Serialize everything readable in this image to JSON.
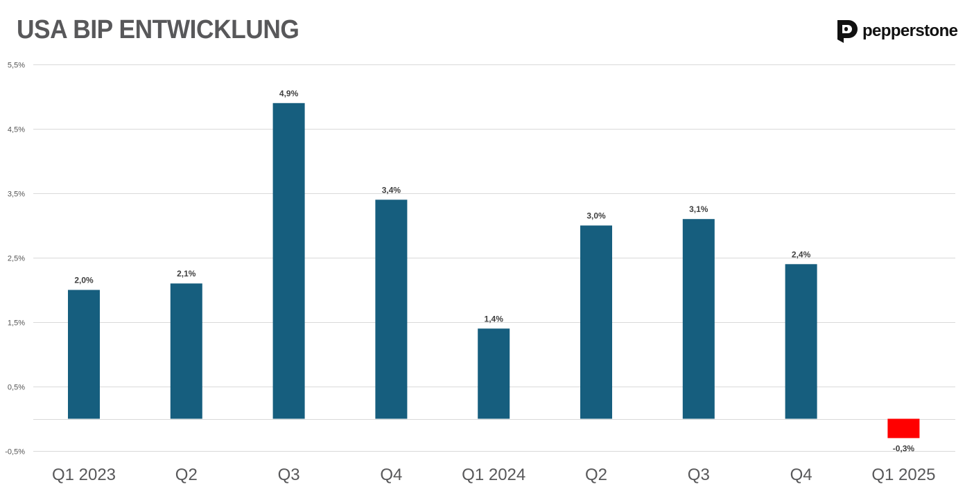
{
  "brand": {
    "name": "pepperstone",
    "logo_icon": "pepperstone-p-icon"
  },
  "colors": {
    "positive_bar": "#165e7e",
    "negative_bar": "#ff0000",
    "title": "#58585a",
    "grid": "#d9d9d9"
  },
  "chart_data": {
    "type": "bar",
    "title": "USA BIP ENTWICKLUNG",
    "xlabel": "",
    "ylabel": "",
    "categories": [
      "Q1 2023",
      "Q2",
      "Q3",
      "Q4",
      "Q1 2024",
      "Q2",
      "Q3",
      "Q4",
      "Q1 2025"
    ],
    "values": [
      2.0,
      2.1,
      4.9,
      3.4,
      1.4,
      3.0,
      3.1,
      2.4,
      -0.3
    ],
    "value_labels": [
      "2,0%",
      "2,1%",
      "4,9%",
      "3,4%",
      "1,4%",
      "3,0%",
      "3,1%",
      "2,4%",
      "-0,3%"
    ],
    "y_ticks": [
      5.5,
      4.5,
      3.5,
      2.5,
      1.5,
      0.5,
      -0.5
    ],
    "y_tick_labels": [
      "5,5%",
      "4,5%",
      "3,5%",
      "2,5%",
      "1,5%",
      "0,5%",
      "-0,5%"
    ],
    "ylim": [
      -0.5,
      5.5
    ],
    "grid": true,
    "legend": "none"
  }
}
